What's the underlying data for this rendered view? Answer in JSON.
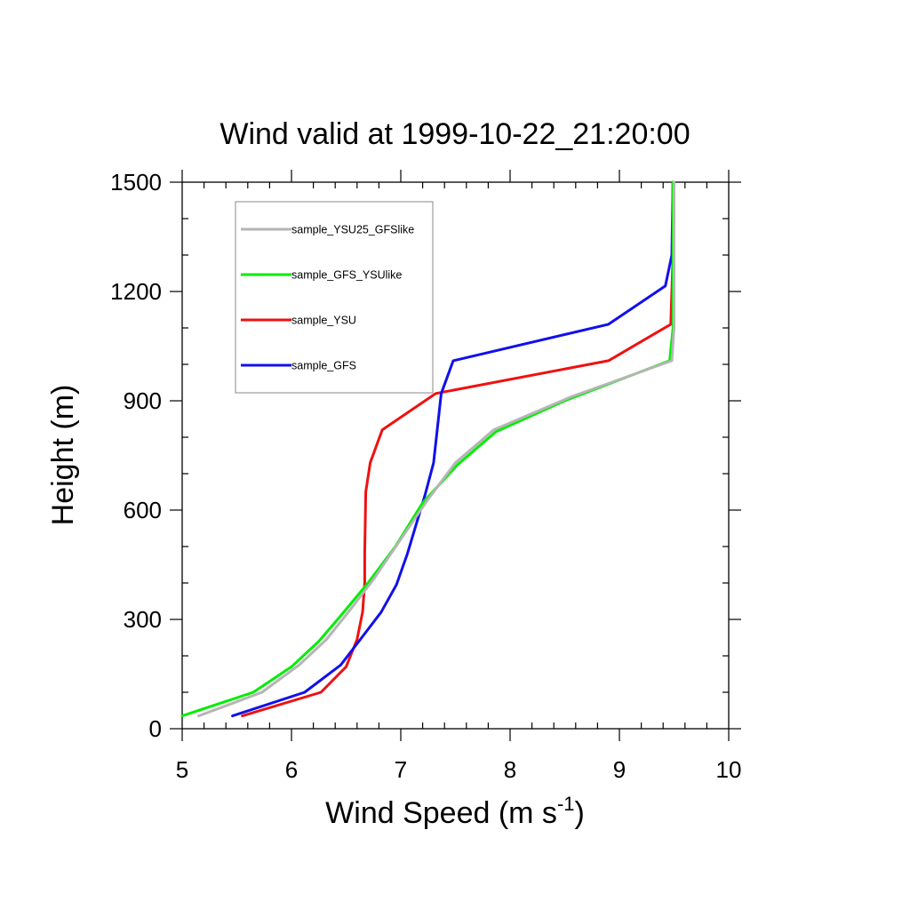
{
  "chart_data": {
    "type": "line",
    "title": "Wind valid at 1999-10-22_21:20:00",
    "xlabel": "Wind Speed (m s",
    "xlabel_sup": "-1",
    "xlabel_end": ")",
    "ylabel": "Height (m)",
    "xlim": [
      5,
      10
    ],
    "ylim": [
      0,
      1500
    ],
    "xticks": [
      5,
      6,
      7,
      8,
      9,
      10
    ],
    "yticks": [
      0,
      300,
      600,
      900,
      1200,
      1500
    ],
    "grid": false,
    "legend_position": "top-left",
    "series": [
      {
        "name": "sample_YSU25_GFSlike",
        "color": "#b5b5b5",
        "x": [
          5.15,
          5.73,
          6.07,
          6.32,
          6.52,
          6.75,
          7.0,
          7.25,
          7.5,
          7.85,
          8.55,
          9.48,
          9.5,
          9.5
        ],
        "y": [
          35,
          100,
          175,
          245,
          320,
          410,
          520,
          630,
          730,
          820,
          910,
          1010,
          1100,
          1500
        ]
      },
      {
        "name": "sample_GFS_YSUlike",
        "color": "#00ee00",
        "x": [
          5.0,
          5.65,
          6.0,
          6.25,
          6.45,
          6.7,
          6.95,
          7.2,
          7.52,
          7.87,
          8.5,
          9.46,
          9.49,
          9.49
        ],
        "y": [
          35,
          100,
          170,
          240,
          310,
          400,
          500,
          620,
          725,
          815,
          900,
          1010,
          1100,
          1500
        ]
      },
      {
        "name": "sample_YSU",
        "color": "#ee1111",
        "x": [
          5.55,
          6.27,
          6.5,
          6.6,
          6.65,
          6.67,
          6.67,
          6.68,
          6.72,
          6.83,
          7.32,
          8.9,
          9.47,
          9.49,
          9.49
        ],
        "y": [
          35,
          100,
          170,
          245,
          320,
          400,
          480,
          650,
          730,
          820,
          920,
          1010,
          1110,
          1300,
          1500
        ]
      },
      {
        "name": "sample_GFS",
        "color": "#1010ee",
        "x": [
          5.46,
          6.12,
          6.45,
          6.63,
          6.82,
          6.96,
          7.06,
          7.14,
          7.22,
          7.3,
          7.37,
          7.48,
          8.9,
          9.42,
          9.48,
          9.49
        ],
        "y": [
          35,
          100,
          175,
          245,
          320,
          395,
          480,
          560,
          640,
          730,
          920,
          1010,
          1110,
          1215,
          1300,
          1500
        ]
      }
    ]
  }
}
